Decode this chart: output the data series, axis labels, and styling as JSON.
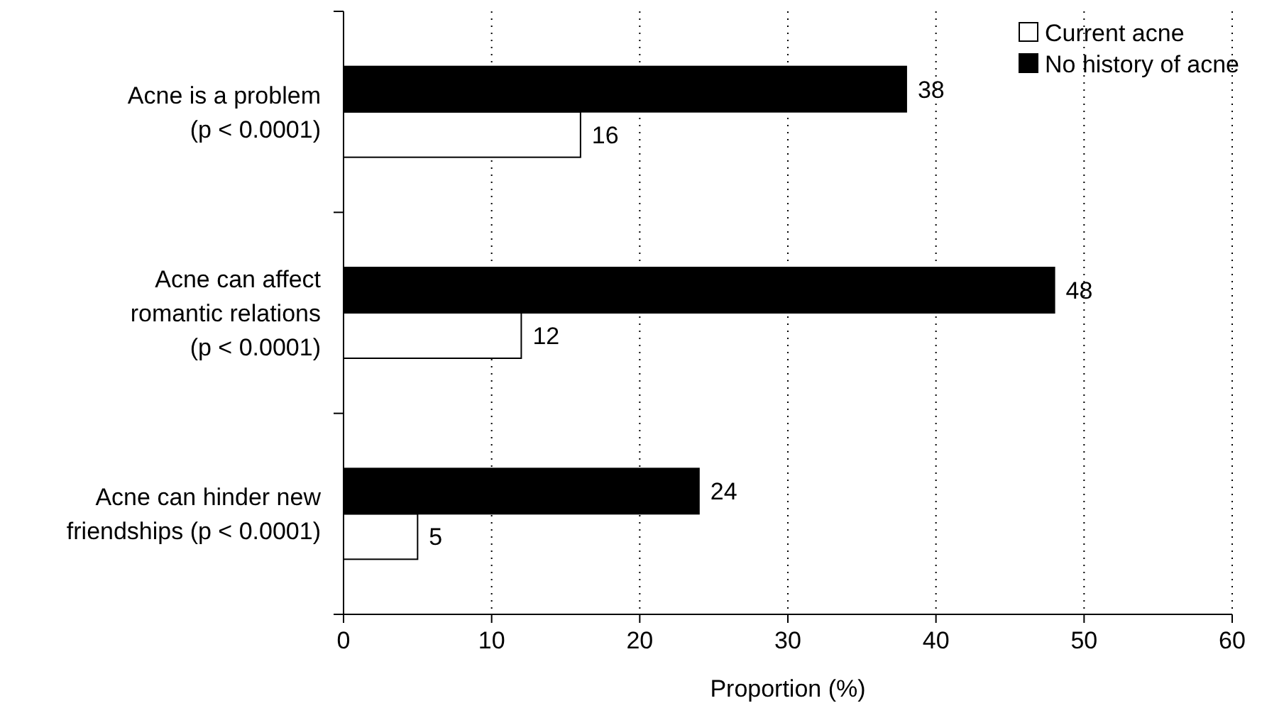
{
  "chart_data": {
    "type": "bar",
    "orientation": "horizontal",
    "xlabel": "Proportion (%)",
    "categories": [
      "Acne is a problem\n(p < 0.0001)",
      "Acne can affect\nromantic relations\n(p < 0.0001)",
      "Acne can hinder new\nfriendships (p < 0.0001)"
    ],
    "series": [
      {
        "name": "Current acne",
        "color": "#ffffff",
        "values": [
          16,
          12,
          5
        ]
      },
      {
        "name": "No history of acne",
        "color": "#000000",
        "values": [
          38,
          48,
          24
        ]
      }
    ],
    "xlim": [
      0,
      60
    ],
    "xticks": [
      0,
      10,
      20,
      30,
      40,
      50,
      60
    ],
    "grid": "x",
    "legend": "top right",
    "data_labels": true
  }
}
